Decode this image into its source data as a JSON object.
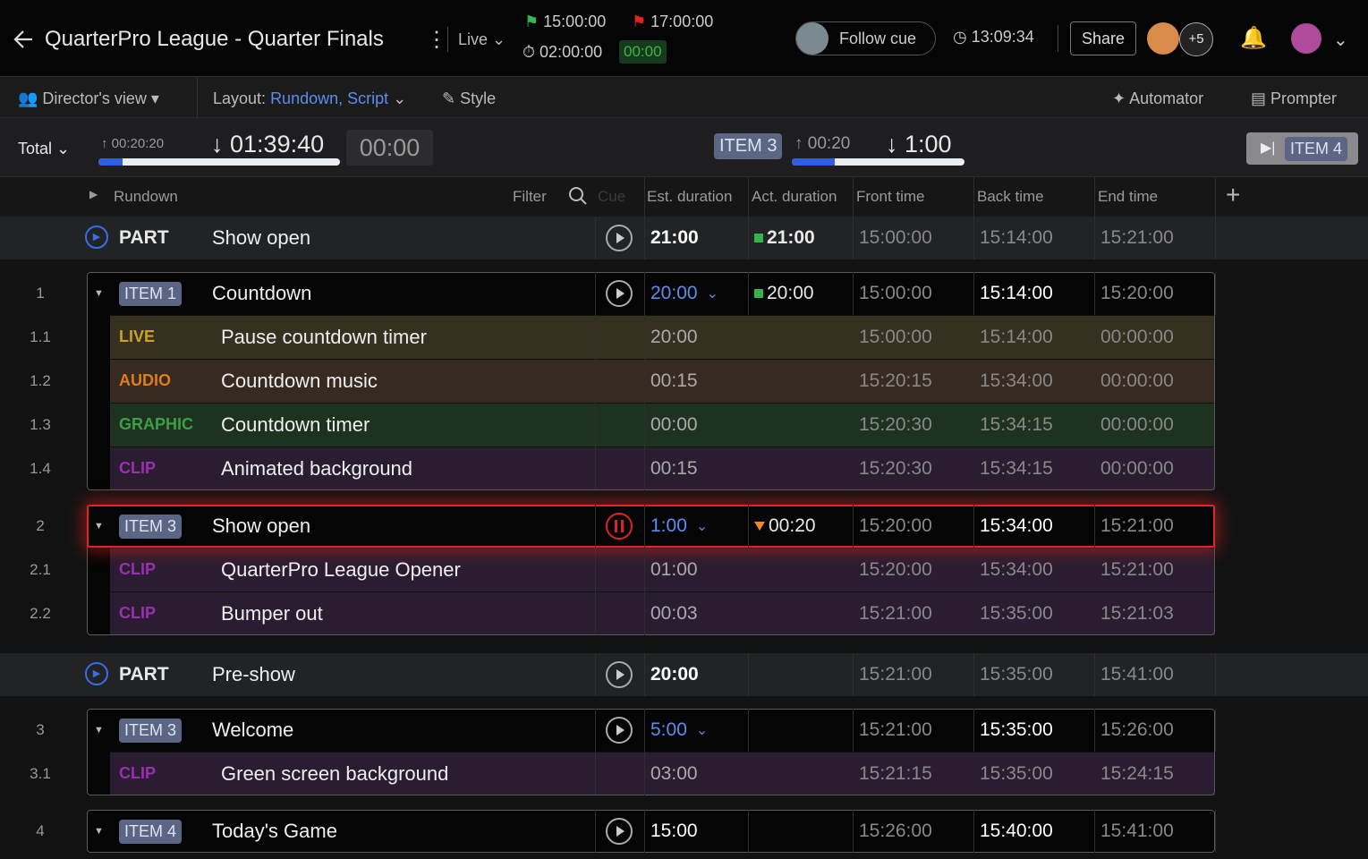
{
  "header": {
    "title": "QuarterPro League - Quarter Finals",
    "mode": "Live",
    "start_time": "15:00:00",
    "end_time": "17:00:00",
    "timer": "02:00:00",
    "timer_delta": "00:00",
    "follow_cue": "Follow cue",
    "clock": "13:09:34",
    "share": "Share",
    "extra_users": "+5"
  },
  "toolbar": {
    "view": "Director's view",
    "layout_label": "Layout:",
    "layout_value": "Rundown, Script",
    "style": "Style",
    "automator": "Automator",
    "prompter": "Prompter"
  },
  "timing": {
    "total": "Total",
    "total_elapsed": "00:20:20",
    "total_remaining": "01:39:40",
    "over": "00:00",
    "current_item": "ITEM 3",
    "item_elapsed": "00:20",
    "item_remaining": "1:00",
    "next_item": "ITEM 4"
  },
  "columns": {
    "rundown": "Rundown",
    "filter": "Filter",
    "cue": "Cue",
    "est": "Est. duration",
    "act": "Act. duration",
    "front": "Front time",
    "back": "Back time",
    "end": "End time"
  },
  "rows": [
    {
      "kind": "part",
      "tag": "PART",
      "title": "Show open",
      "est": "21:00",
      "act": "21:00",
      "act_marker": "square",
      "act_color": "#35b24a",
      "front": "15:00:00",
      "back": "15:14:00",
      "end": "15:21:00"
    },
    {
      "kind": "item",
      "number": "1",
      "tag": "ITEM 1",
      "title": "Countdown",
      "est": "20:00",
      "est_menu": true,
      "act": "20:00",
      "act_marker": "square",
      "act_color": "#35b24a",
      "front": "15:00:00",
      "back": "15:14:00",
      "end": "15:20:00"
    },
    {
      "kind": "sub",
      "number": "1.1",
      "tag": "LIVE",
      "color": "#c9a227",
      "bg": "#35301f",
      "title": "Pause countdown timer",
      "est": "20:00",
      "front": "15:00:00",
      "back": "15:14:00",
      "end": "00:00:00"
    },
    {
      "kind": "sub",
      "number": "1.2",
      "tag": "AUDIO",
      "color": "#e07b1a",
      "bg": "#372a21",
      "title": "Countdown music",
      "est": "00:15",
      "front": "15:20:15",
      "back": "15:34:00",
      "end": "00:00:00"
    },
    {
      "kind": "sub",
      "number": "1.3",
      "tag": "GRAPHIC",
      "color": "#3c9e47",
      "bg": "#1e331f",
      "title": "Countdown timer",
      "est": "00:00",
      "front": "15:20:30",
      "back": "15:34:15",
      "end": "00:00:00"
    },
    {
      "kind": "sub",
      "number": "1.4",
      "tag": "CLIP",
      "color": "#9a2fb0",
      "bg": "#2b1d31",
      "title": "Animated background",
      "est": "00:15",
      "front": "15:20:30",
      "back": "15:34:15",
      "end": "00:00:00"
    },
    {
      "kind": "item",
      "number": "2",
      "tag": "ITEM 3",
      "title": "Show open",
      "est": "1:00",
      "est_menu": true,
      "act": "00:20",
      "act_marker": "triangle",
      "act_color": "#f08a1c",
      "front": "15:20:00",
      "back": "15:34:00",
      "end": "15:21:00",
      "active": true
    },
    {
      "kind": "sub",
      "number": "2.1",
      "tag": "CLIP",
      "color": "#9a2fb0",
      "bg": "#2b1d31",
      "title": "QuarterPro League Opener",
      "est": "01:00",
      "front": "15:20:00",
      "back": "15:34:00",
      "end": "15:21:00"
    },
    {
      "kind": "sub",
      "number": "2.2",
      "tag": "CLIP",
      "color": "#9a2fb0",
      "bg": "#2b1d31",
      "title": "Bumper out",
      "est": "00:03",
      "front": "15:21:00",
      "back": "15:35:00",
      "end": "15:21:03"
    },
    {
      "kind": "part",
      "tag": "PART",
      "title": "Pre-show",
      "est": "20:00",
      "front": "15:21:00",
      "back": "15:35:00",
      "end": "15:41:00"
    },
    {
      "kind": "item",
      "number": "3",
      "tag": "ITEM 3",
      "title": "Welcome",
      "est": "5:00",
      "est_menu": true,
      "front": "15:21:00",
      "back": "15:35:00",
      "end": "15:26:00"
    },
    {
      "kind": "sub",
      "number": "3.1",
      "tag": "CLIP",
      "color": "#9a2fb0",
      "bg": "#2b1d31",
      "title": "Green screen background",
      "est": "03:00",
      "front": "15:21:15",
      "back": "15:35:00",
      "end": "15:24:15"
    },
    {
      "kind": "item",
      "number": "4",
      "tag": "ITEM 4",
      "title": "Today's Game",
      "est": "15:00",
      "front": "15:26:00",
      "back": "15:40:00",
      "end": "15:41:00"
    }
  ]
}
